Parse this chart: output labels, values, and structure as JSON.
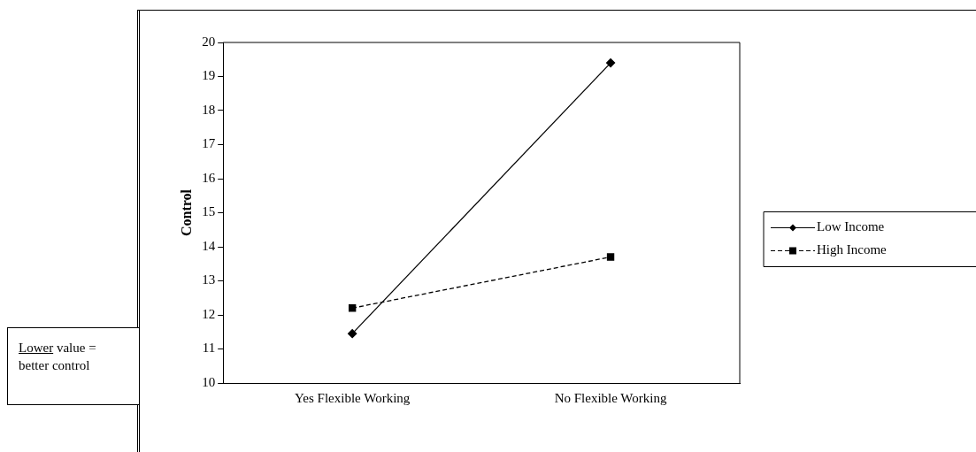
{
  "chart_data": {
    "type": "line",
    "ylabel": "Control",
    "categories": [
      "Yes Flexible Working",
      "No Flexible Working"
    ],
    "series": [
      {
        "name": "Low Income",
        "color": "#000000",
        "values": [
          11.45,
          19.4
        ],
        "marker": "diamond",
        "line_style": "solid"
      },
      {
        "name": "High Income",
        "color": "#000000",
        "values": [
          12.2,
          13.7
        ],
        "marker": "square",
        "line_style": "dashed"
      }
    ],
    "ylim": [
      10,
      20
    ],
    "yticks": [
      10,
      11,
      12,
      13,
      14,
      15,
      16,
      17,
      18,
      19,
      20
    ],
    "grid": false,
    "legend": "right",
    "annotations": [
      "Lower value = better control"
    ]
  }
}
